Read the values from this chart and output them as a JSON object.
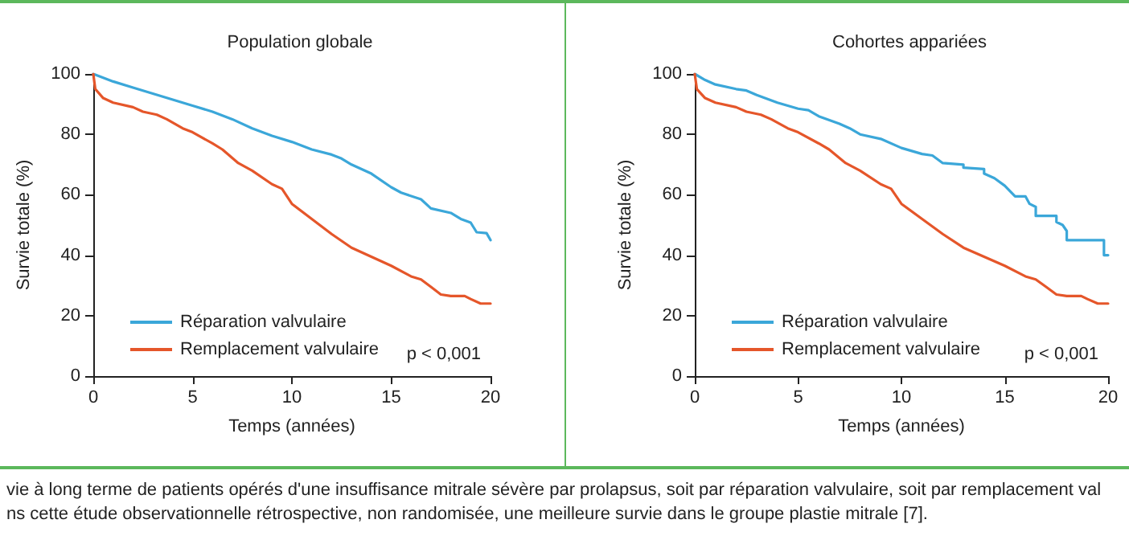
{
  "chart_data": [
    {
      "type": "line",
      "title": "Population globale",
      "xlabel": "Temps (années)",
      "ylabel": "Survie totale (%)",
      "xlim": [
        0,
        20
      ],
      "ylim": [
        0,
        100
      ],
      "xticks": [
        0,
        5,
        10,
        15,
        20
      ],
      "yticks": [
        0,
        20,
        40,
        60,
        80,
        100
      ],
      "grid": false,
      "legend": "bottom left",
      "marker": "none",
      "line_style": "solid",
      "annotations": [
        "p < 0,001"
      ],
      "series": [
        {
          "name": "Réparation valvulaire",
          "color": "#3ba7d9",
          "x": [
            0,
            1,
            2,
            3,
            4,
            5,
            6,
            7,
            8,
            9,
            10,
            11,
            12,
            12.5,
            13,
            14,
            15,
            15.5,
            16.5,
            17,
            18,
            18.5,
            19,
            19.3,
            19.8,
            20
          ],
          "values": [
            100,
            97.5,
            95.5,
            93.5,
            91.5,
            89.5,
            87.5,
            85,
            82,
            79.5,
            77.5,
            75,
            73.3,
            72,
            70,
            67,
            62.5,
            60.7,
            58.5,
            55.5,
            54,
            52,
            50.8,
            47.6,
            47.3,
            45
          ]
        },
        {
          "name": "Remplacement valvulaire",
          "color": "#e5562a",
          "x": [
            0,
            0.1,
            0.5,
            1,
            2,
            2.5,
            3.2,
            3.7,
            4.5,
            5,
            6,
            6.5,
            7.3,
            8,
            9,
            9.5,
            10,
            11,
            12,
            13,
            14,
            15,
            16,
            16.5,
            17,
            17.5,
            18,
            18.7,
            19,
            19.5,
            20
          ],
          "values": [
            100,
            95,
            92,
            90.5,
            89,
            87.5,
            86.5,
            85,
            82,
            80.7,
            77,
            75,
            70.5,
            68,
            63.5,
            62,
            57,
            52,
            47,
            42.5,
            39.5,
            36.5,
            33,
            32,
            29.5,
            27,
            26.5,
            26.5,
            25.5,
            24,
            24
          ]
        }
      ]
    },
    {
      "type": "line",
      "title": "Cohortes appariées",
      "xlabel": "Temps (années)",
      "ylabel": "Survie totale (%)",
      "xlim": [
        0,
        20
      ],
      "ylim": [
        0,
        100
      ],
      "xticks": [
        0,
        5,
        10,
        15,
        20
      ],
      "yticks": [
        0,
        20,
        40,
        60,
        80,
        100
      ],
      "grid": false,
      "legend": "bottom left",
      "marker": "none",
      "line_style": "solid",
      "annotations": [
        "p < 0,001"
      ],
      "series": [
        {
          "name": "Réparation valvulaire",
          "color": "#3ba7d9",
          "x": [
            0,
            0.5,
            1,
            2,
            2.5,
            3,
            4,
            5,
            5.5,
            6,
            7,
            7.5,
            8,
            9,
            10,
            11,
            11.5,
            12,
            13,
            13,
            14,
            14,
            14.5,
            15,
            15.5,
            16,
            16.2,
            16.5,
            16.5,
            17.5,
            17.5,
            17.8,
            18,
            18,
            19.8,
            19.8,
            20
          ],
          "values": [
            100,
            98,
            96.5,
            95,
            94.5,
            93,
            90.5,
            88.5,
            88,
            86,
            83.5,
            82,
            80,
            78.5,
            75.5,
            73.5,
            73,
            70.5,
            70,
            69,
            68.5,
            67,
            65.5,
            63,
            59.5,
            59.5,
            57,
            56,
            53,
            53,
            51,
            50,
            48,
            45,
            45,
            40,
            40
          ]
        },
        {
          "name": "Remplacement valvulaire",
          "color": "#e5562a",
          "x": [
            0,
            0.1,
            0.5,
            1,
            2,
            2.5,
            3.2,
            3.7,
            4.5,
            5,
            6,
            6.5,
            7.3,
            8,
            9,
            9.5,
            10,
            11,
            12,
            13,
            14,
            15,
            16,
            16.5,
            17,
            17.5,
            18,
            18.7,
            19,
            19.5,
            20
          ],
          "values": [
            100,
            95,
            92,
            90.5,
            89,
            87.5,
            86.5,
            85,
            82,
            80.7,
            77,
            75,
            70.5,
            68,
            63.5,
            62,
            57,
            52,
            47,
            42.5,
            39.5,
            36.5,
            33,
            32,
            29.5,
            27,
            26.5,
            26.5,
            25.5,
            24,
            24
          ]
        }
      ]
    },
    {
      "type": "other",
      "annotations": [
        "vie à long terme de patients opérés d'une insuffisance mitrale sévère par prolapsus, soit par réparation valvulaire, soit par remplacement val",
        "ns cette étude observationnelle rétrospective, non randomisée, une meilleure survie dans le groupe plastie mitrale [7]."
      ]
    }
  ]
}
